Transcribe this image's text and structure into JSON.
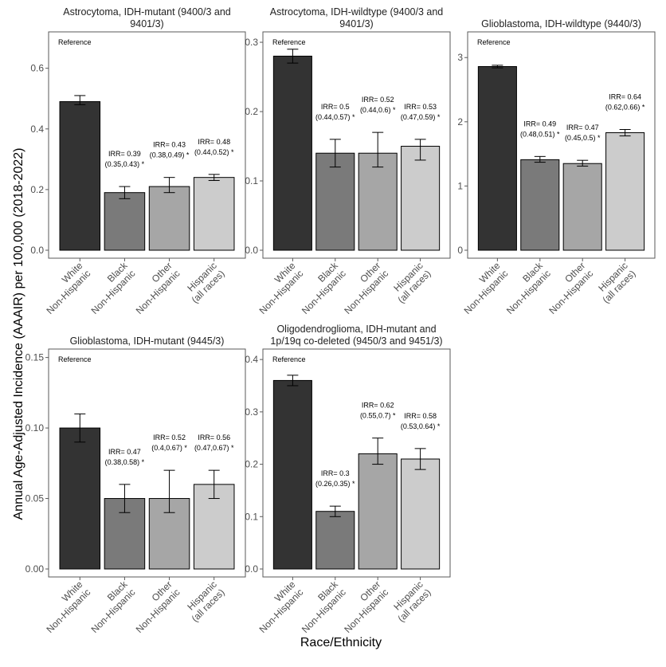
{
  "figure": {
    "ylabel": "Annual Age-Adjusted Incidence (AAAIR) per 100,000 (2018-2022)",
    "xlabel": "Race/Ethnicity",
    "reference_label": "Reference",
    "categories": [
      [
        "White",
        "Non-Hispanic"
      ],
      [
        "Black",
        "Non-Hispanic"
      ],
      [
        "Other",
        "Non-Hispanic"
      ],
      [
        "Hispanic",
        "(all races)"
      ]
    ],
    "bar_colors": [
      "#333333",
      "#7a7a7a",
      "#a6a6a6",
      "#cccccc"
    ]
  },
  "chart_data": [
    {
      "type": "bar",
      "title_lines": [
        "Astrocytoma, IDH-mutant (9400/3 and",
        "9401/3)"
      ],
      "values": [
        0.49,
        0.19,
        0.21,
        0.24
      ],
      "err_low": [
        0.48,
        0.17,
        0.19,
        0.23
      ],
      "err_high": [
        0.51,
        0.21,
        0.24,
        0.25
      ],
      "irr": [
        null,
        [
          "IRR= 0.39",
          "(0.35,0.43) *"
        ],
        [
          "IRR= 0.43",
          "(0.38,0.49) *"
        ],
        [
          "IRR= 0.48",
          "(0.44,0.52) *"
        ]
      ],
      "ylim": [
        0,
        0.72
      ],
      "yticks": [
        0.0,
        0.2,
        0.4,
        0.6
      ],
      "ytick_labels": [
        "0.0",
        "0.2",
        "0.4",
        "0.6"
      ]
    },
    {
      "type": "bar",
      "title_lines": [
        "Astrocytoma, IDH-wildtype (9400/3 and",
        "9401/3)"
      ],
      "values": [
        0.28,
        0.14,
        0.14,
        0.15
      ],
      "err_low": [
        0.27,
        0.12,
        0.12,
        0.13
      ],
      "err_high": [
        0.29,
        0.16,
        0.17,
        0.16
      ],
      "irr": [
        null,
        [
          "IRR= 0.5",
          "(0.44,0.57) *"
        ],
        [
          "IRR= 0.52",
          "(0.44,0.6) *"
        ],
        [
          "IRR= 0.53",
          "(0.47,0.59) *"
        ]
      ],
      "ylim": [
        0,
        0.315
      ],
      "yticks": [
        0.0,
        0.1,
        0.2,
        0.3
      ],
      "ytick_labels": [
        "0.0",
        "0.1",
        "0.2",
        "0.3"
      ]
    },
    {
      "type": "bar",
      "title_lines": [
        "Glioblastoma, IDH-wildtype (9440/3)"
      ],
      "values": [
        2.86,
        1.41,
        1.35,
        1.83
      ],
      "err_low": [
        2.84,
        1.37,
        1.31,
        1.78
      ],
      "err_high": [
        2.88,
        1.46,
        1.4,
        1.88
      ],
      "irr": [
        null,
        [
          "IRR= 0.49",
          "(0.48,0.51) *"
        ],
        [
          "IRR= 0.47",
          "(0.45,0.5) *"
        ],
        [
          "IRR= 0.64",
          "(0.62,0.66) *"
        ]
      ],
      "ylim": [
        0,
        3.4
      ],
      "yticks": [
        0,
        1,
        2,
        3
      ],
      "ytick_labels": [
        "0",
        "1",
        "2",
        "3"
      ]
    },
    {
      "type": "bar",
      "title_lines": [
        "Glioblastoma, IDH-mutant (9445/3)"
      ],
      "values": [
        0.1,
        0.05,
        0.05,
        0.06
      ],
      "err_low": [
        0.09,
        0.04,
        0.04,
        0.05
      ],
      "err_high": [
        0.11,
        0.06,
        0.07,
        0.07
      ],
      "irr": [
        null,
        [
          "IRR= 0.47",
          "(0.38,0.58) *"
        ],
        [
          "IRR= 0.52",
          "(0.4,0.67) *"
        ],
        [
          "IRR= 0.56",
          "(0.47,0.67) *"
        ]
      ],
      "ylim": [
        0,
        0.156
      ],
      "yticks": [
        0.0,
        0.05,
        0.1,
        0.15
      ],
      "ytick_labels": [
        "0.00",
        "0.05",
        "0.10",
        "0.15"
      ]
    },
    {
      "type": "bar",
      "title_lines": [
        "Oligodendroglioma, IDH-mutant and",
        "1p/19q co-deleted (9450/3 and 9451/3)"
      ],
      "values": [
        0.36,
        0.11,
        0.22,
        0.21
      ],
      "err_low": [
        0.35,
        0.1,
        0.2,
        0.19
      ],
      "err_high": [
        0.37,
        0.12,
        0.25,
        0.23
      ],
      "irr": [
        null,
        [
          "IRR= 0.3",
          "(0.26,0.35) *"
        ],
        [
          "IRR= 0.62",
          "(0.55,0.7) *"
        ],
        [
          "IRR= 0.58",
          "(0.53,0.64) *"
        ]
      ],
      "ylim": [
        0,
        0.42
      ],
      "yticks": [
        0.0,
        0.1,
        0.2,
        0.3,
        0.4
      ],
      "ytick_labels": [
        "0.0",
        "0.1",
        "0.2",
        "0.3",
        "0.4"
      ]
    }
  ]
}
